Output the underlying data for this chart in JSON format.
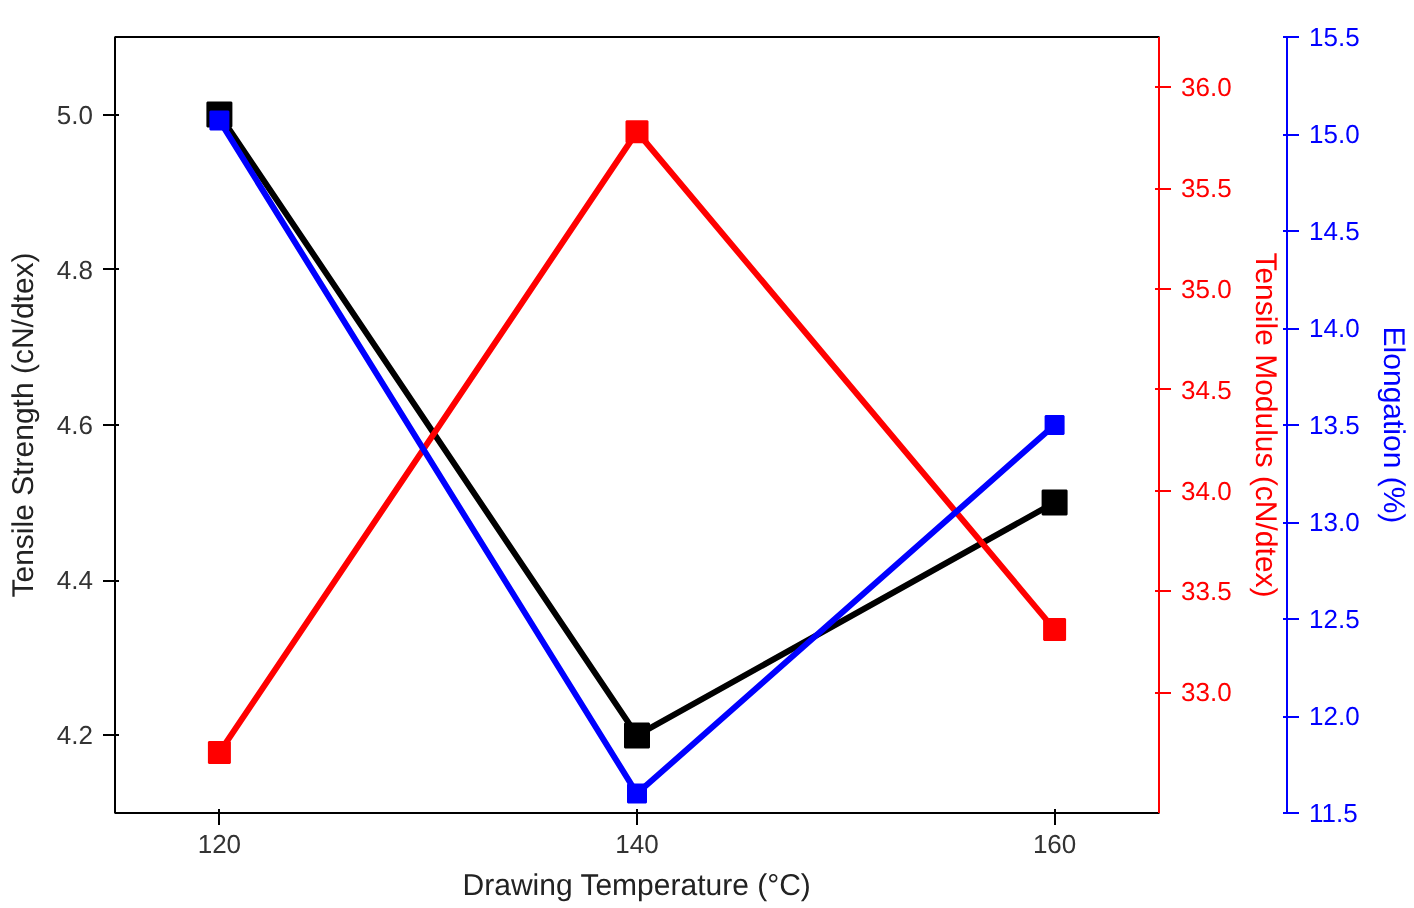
{
  "chart_data": {
    "type": "line",
    "xlabel": "Drawing Temperature (°C)",
    "ylabel": "Tensile Strength (cN/dtex)",
    "y2label": "Tensile Modulus (cN/dtex)",
    "y3label": "Elongation (%)",
    "x": [
      120,
      140,
      160
    ],
    "xlim": [
      115,
      165
    ],
    "xticks": [
      120,
      140,
      160
    ],
    "ylim": [
      4.1,
      5.1
    ],
    "yticks": [
      {
        "value": 4.2,
        "label": "4.2"
      },
      {
        "value": 4.4,
        "label": "4.4"
      },
      {
        "value": 4.6,
        "label": "4.6"
      },
      {
        "value": 4.8,
        "label": "4.8"
      },
      {
        "value": 5.0,
        "label": "5.0"
      }
    ],
    "y2lim": [
      32.4,
      36.25
    ],
    "y2ticks": [
      {
        "value": 33.0,
        "label": "33.0"
      },
      {
        "value": 33.5,
        "label": "33.5"
      },
      {
        "value": 34.0,
        "label": "34.0"
      },
      {
        "value": 34.5,
        "label": "34.5"
      },
      {
        "value": 35.0,
        "label": "35.0"
      },
      {
        "value": 35.5,
        "label": "35.5"
      },
      {
        "value": 36.0,
        "label": "36.0"
      }
    ],
    "y3lim": [
      11.5,
      15.5
    ],
    "y3ticks": [
      {
        "value": 11.5,
        "label": "11.5"
      },
      {
        "value": 12.0,
        "label": "12.0"
      },
      {
        "value": 12.5,
        "label": "12.5"
      },
      {
        "value": 13.0,
        "label": "13.0"
      },
      {
        "value": 13.5,
        "label": "13.5"
      },
      {
        "value": 14.0,
        "label": "14.0"
      },
      {
        "value": 14.5,
        "label": "14.5"
      },
      {
        "value": 15.0,
        "label": "15.0"
      },
      {
        "value": 15.5,
        "label": "15.5"
      }
    ],
    "series": [
      {
        "color": "#000000",
        "values": [
          5.0,
          4.2,
          4.5
        ]
      },
      {
        "color": "#ff0000",
        "values": [
          32.7,
          35.78,
          33.31
        ],
        "axis": "y2"
      },
      {
        "color": "#0000ff",
        "values": [
          15.07,
          11.6,
          13.5
        ],
        "axis": "y3"
      }
    ],
    "marker": "square",
    "line_style": "solid",
    "grid": false
  }
}
